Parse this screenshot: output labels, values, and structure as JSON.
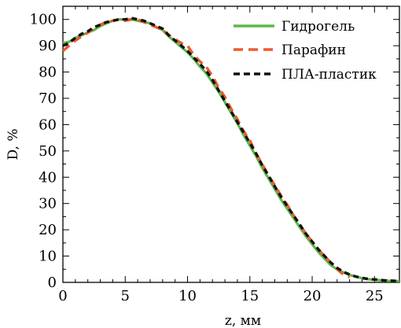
{
  "chart_data": {
    "type": "line",
    "xlabel": "z, мм",
    "ylabel": "D, %",
    "xlim": [
      0,
      27
    ],
    "ylim": [
      0,
      105
    ],
    "xticks": [
      0,
      5,
      10,
      15,
      20,
      25
    ],
    "yticks": [
      0,
      10,
      20,
      30,
      40,
      50,
      60,
      70,
      80,
      90,
      100
    ],
    "legend_position": "top-right",
    "grid": false,
    "series": [
      {
        "name": "Гидрогель",
        "color": "#5cb946",
        "style": "solid",
        "x": [
          0,
          0.5,
          1,
          1.5,
          2,
          2.5,
          3,
          3.5,
          4,
          4.5,
          5,
          5.5,
          6,
          6.5,
          7,
          7.5,
          8,
          8.5,
          9,
          9.5,
          10,
          10.5,
          11,
          11.5,
          12,
          12.5,
          13,
          13.5,
          14,
          14.5,
          15,
          15.5,
          16,
          16.5,
          17,
          17.5,
          18,
          18.5,
          19,
          19.5,
          20,
          20.5,
          21,
          21.5,
          22,
          22.5,
          23,
          23.5,
          24,
          24.5,
          25,
          25.5,
          26,
          26.5,
          27
        ],
        "y": [
          91,
          91.5,
          93,
          94,
          95,
          96,
          97.5,
          98.5,
          99.5,
          100,
          100,
          100,
          99.5,
          99,
          98.5,
          97,
          96,
          93.5,
          91.5,
          89.5,
          87.5,
          85,
          82,
          79.5,
          76,
          72.5,
          68.5,
          64.5,
          60.5,
          56,
          52,
          48,
          43.5,
          39.5,
          35.5,
          31.5,
          28,
          24.5,
          21,
          17.5,
          14.5,
          11.5,
          9,
          6.5,
          5,
          3.8,
          2.8,
          2.2,
          1.6,
          1.2,
          1,
          0.8,
          0.6,
          0.5,
          0.5
        ]
      },
      {
        "name": "Парафин",
        "color": "#ee5a2f",
        "style": "dashed",
        "x": [
          0,
          0.5,
          1,
          1.5,
          2,
          2.5,
          3,
          3.5,
          4,
          4.5,
          5,
          5.5,
          6,
          6.5,
          7,
          7.5,
          8,
          8.5,
          9,
          9.5,
          10,
          10.5,
          11,
          11.5,
          12,
          12.5,
          13,
          13.5,
          14,
          14.5,
          15,
          15.5,
          16,
          16.5,
          17,
          17.5,
          18,
          18.5,
          19,
          19.5,
          20,
          20.5,
          21,
          21.5,
          22,
          22.5,
          23
        ],
        "y": [
          88,
          90,
          92,
          93.5,
          95,
          96.5,
          98,
          99,
          99.5,
          100,
          99.5,
          100,
          100,
          99,
          98,
          97,
          96,
          94,
          92.5,
          91,
          90,
          86.5,
          84,
          82,
          78.5,
          74,
          70.5,
          66,
          62,
          57.5,
          54,
          49,
          45,
          40.5,
          37,
          33,
          29.5,
          25.5,
          22,
          18.5,
          15.5,
          12.5,
          10,
          7.5,
          5,
          3,
          2
        ]
      },
      {
        "name": "ПЛА-пластик",
        "color": "#111111",
        "style": "dashed",
        "x": [
          0,
          0.5,
          1,
          1.5,
          2,
          2.5,
          3,
          3.5,
          4,
          4.5,
          5,
          5.5,
          6,
          6.5,
          7,
          7.5,
          8,
          8.5,
          9,
          9.5,
          10,
          10.5,
          11,
          11.5,
          12,
          12.5,
          13,
          13.5,
          14,
          14.5,
          15,
          15.5,
          16,
          16.5,
          17,
          17.5,
          18,
          18.5,
          19,
          19.5,
          20,
          20.5,
          21,
          21.5,
          22,
          22.5,
          23,
          23.5,
          24,
          24.5,
          25,
          25.5,
          26,
          26.5,
          27
        ],
        "y": [
          90,
          91,
          93,
          94.5,
          95.5,
          97,
          98,
          99,
          99.5,
          100,
          100,
          100.5,
          100,
          99.5,
          98.5,
          97.5,
          96.5,
          94,
          92,
          90,
          88,
          85.5,
          83,
          80.5,
          77,
          73,
          69,
          65,
          61,
          57,
          53,
          49,
          44.5,
          40.5,
          36.5,
          32.5,
          29,
          25.5,
          22,
          18.5,
          15.5,
          12.5,
          10,
          7.5,
          5.5,
          4,
          3,
          2.2,
          1.7,
          1.3,
          1.1,
          0.9,
          0.7,
          0.6,
          0.5
        ]
      }
    ]
  }
}
